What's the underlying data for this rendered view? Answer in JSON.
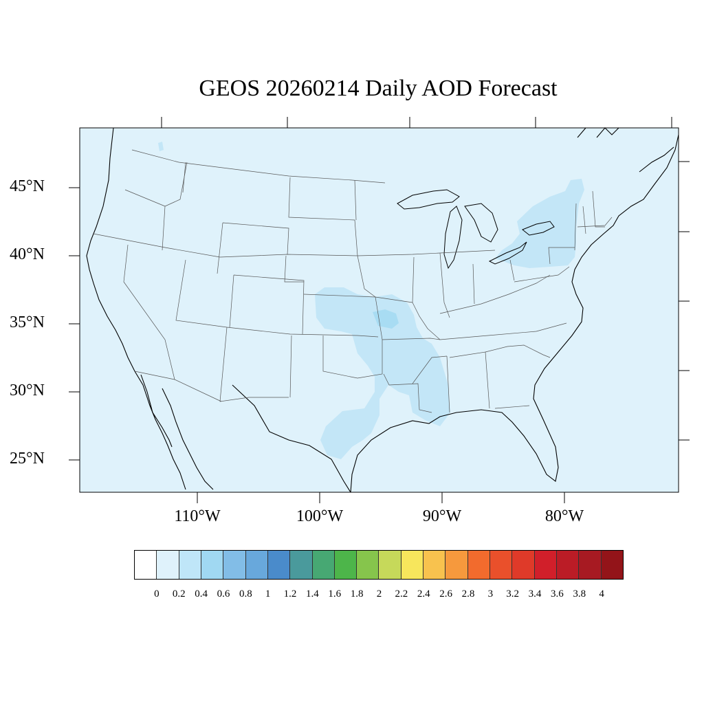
{
  "title": "GEOS 20260214 Daily AOD Forecast",
  "lat_labels": [
    "45°N",
    "40°N",
    "35°N",
    "30°N",
    "25°N"
  ],
  "lon_labels": [
    "110°W",
    "100°W",
    "90°W",
    "80°W"
  ],
  "background_color": "#dff2fb",
  "plume_colors": {
    "light": "#c3e6f7",
    "mid": "#a8dcf3"
  },
  "colorbar": {
    "colors": [
      "#ffffff",
      "#dff2fb",
      "#bfe6f8",
      "#a0d8f2",
      "#82bde7",
      "#68a8dc",
      "#4a8bcb",
      "#4a9a9c",
      "#47a873",
      "#4db54a",
      "#86c54c",
      "#c6d95a",
      "#f7e65c",
      "#f8c24e",
      "#f6993d",
      "#f26b2d",
      "#ea502b",
      "#df3a29",
      "#d11f2a",
      "#bb1c26",
      "#a71a22",
      "#931419"
    ],
    "labels": [
      "0",
      "0.2",
      "0.4",
      "0.6",
      "0.8",
      "1",
      "1.2",
      "1.4",
      "1.6",
      "1.8",
      "2",
      "2.2",
      "2.4",
      "2.6",
      "2.8",
      "3",
      "3.2",
      "3.4",
      "3.6",
      "3.8",
      "4"
    ]
  }
}
